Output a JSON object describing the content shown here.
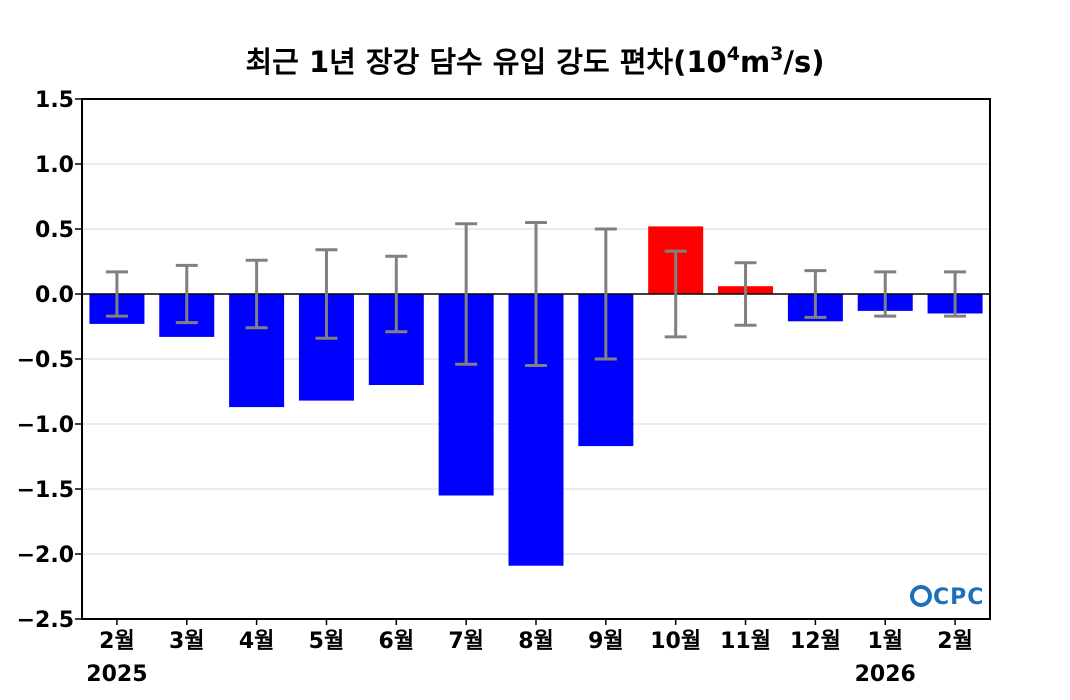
{
  "title": {
    "main": "최근 1년 장강 담수 유입 강도 편차(10",
    "exp1": "4",
    "mid": "m",
    "exp2": "3",
    "end": "/s)"
  },
  "logo": "CPC",
  "chart_data": {
    "type": "bar",
    "categories": [
      "2월",
      "3월",
      "4월",
      "5월",
      "6월",
      "7월",
      "8월",
      "9월",
      "10월",
      "11월",
      "12월",
      "1월",
      "2월"
    ],
    "year_labels": [
      {
        "index": 0,
        "text": "2025"
      },
      {
        "index": 11,
        "text": "2026"
      }
    ],
    "values": [
      -0.23,
      -0.33,
      -0.87,
      -0.82,
      -0.7,
      -1.55,
      -2.09,
      -1.17,
      0.52,
      0.06,
      -0.21,
      -0.13,
      -0.15
    ],
    "error": [
      0.17,
      0.22,
      0.26,
      0.34,
      0.29,
      0.54,
      0.55,
      0.5,
      0.33,
      0.24,
      0.18,
      0.17,
      0.17
    ],
    "ylim": [
      -2.5,
      1.5
    ],
    "yticks": [
      "−2.5",
      "−2.0",
      "−1.5",
      "−1.0",
      "−0.5",
      "0.0",
      "0.5",
      "1.0",
      "1.5"
    ],
    "ytick_values": [
      -2.5,
      -2.0,
      -1.5,
      -1.0,
      -0.5,
      0.0,
      0.5,
      1.0,
      1.5
    ],
    "colors": {
      "positive": "#ff0000",
      "negative": "#0000ff",
      "errorbar": "#808080",
      "grid": "#d9d9d9"
    },
    "grid": true
  }
}
